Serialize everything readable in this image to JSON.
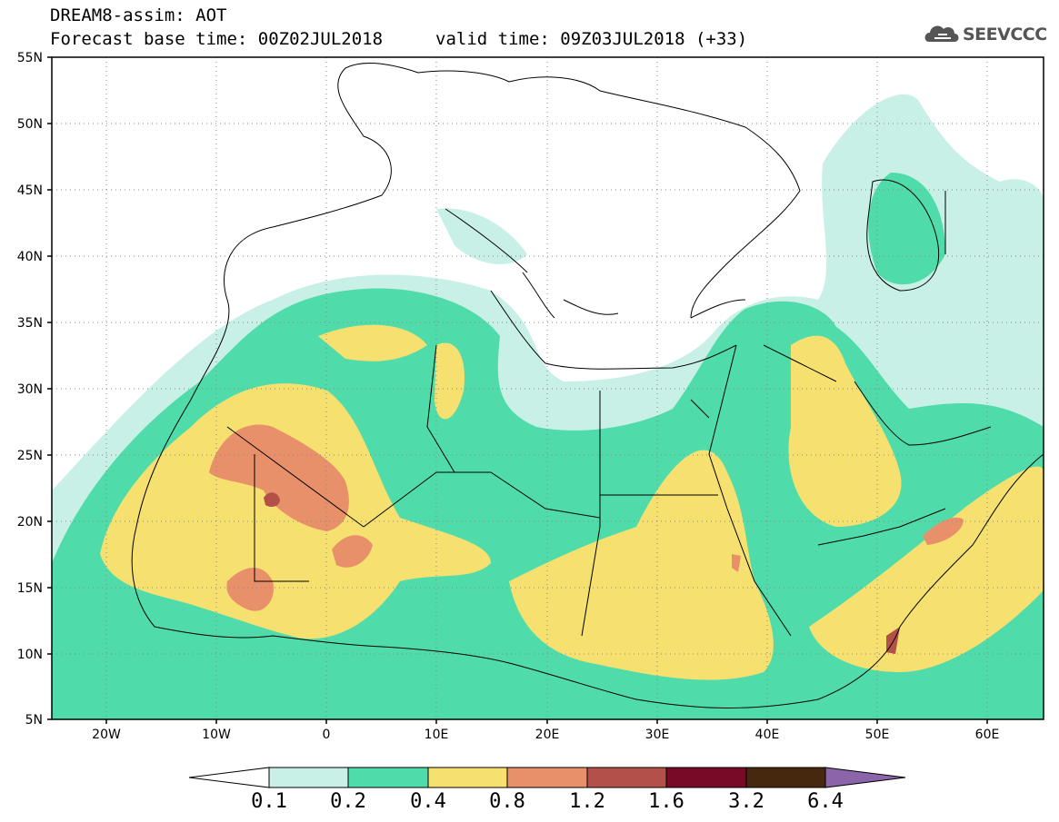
{
  "header": {
    "title": "DREAM8-assim: AOT",
    "base_time": "Forecast base time: 00Z02JUL2018",
    "valid_time": "valid time: 09Z03JUL2018 (+33)"
  },
  "logo": {
    "text": "SEEVCCC"
  },
  "axes": {
    "lat_labels": [
      "55N",
      "50N",
      "45N",
      "40N",
      "35N",
      "30N",
      "25N",
      "20N",
      "15N",
      "10N",
      "5N"
    ],
    "lon_labels": [
      "20W",
      "10W",
      "0",
      "10E",
      "20E",
      "30E",
      "40E",
      "50E",
      "60E"
    ]
  },
  "legend": {
    "levels": [
      "0.1",
      "0.2",
      "0.4",
      "0.8",
      "1.2",
      "1.6",
      "3.2",
      "6.4"
    ],
    "colors": [
      "#c8f0e6",
      "#50dcaa",
      "#f5e070",
      "#e8906a",
      "#b4504a",
      "#780a28",
      "#46280f",
      "#8c64aa"
    ]
  }
}
